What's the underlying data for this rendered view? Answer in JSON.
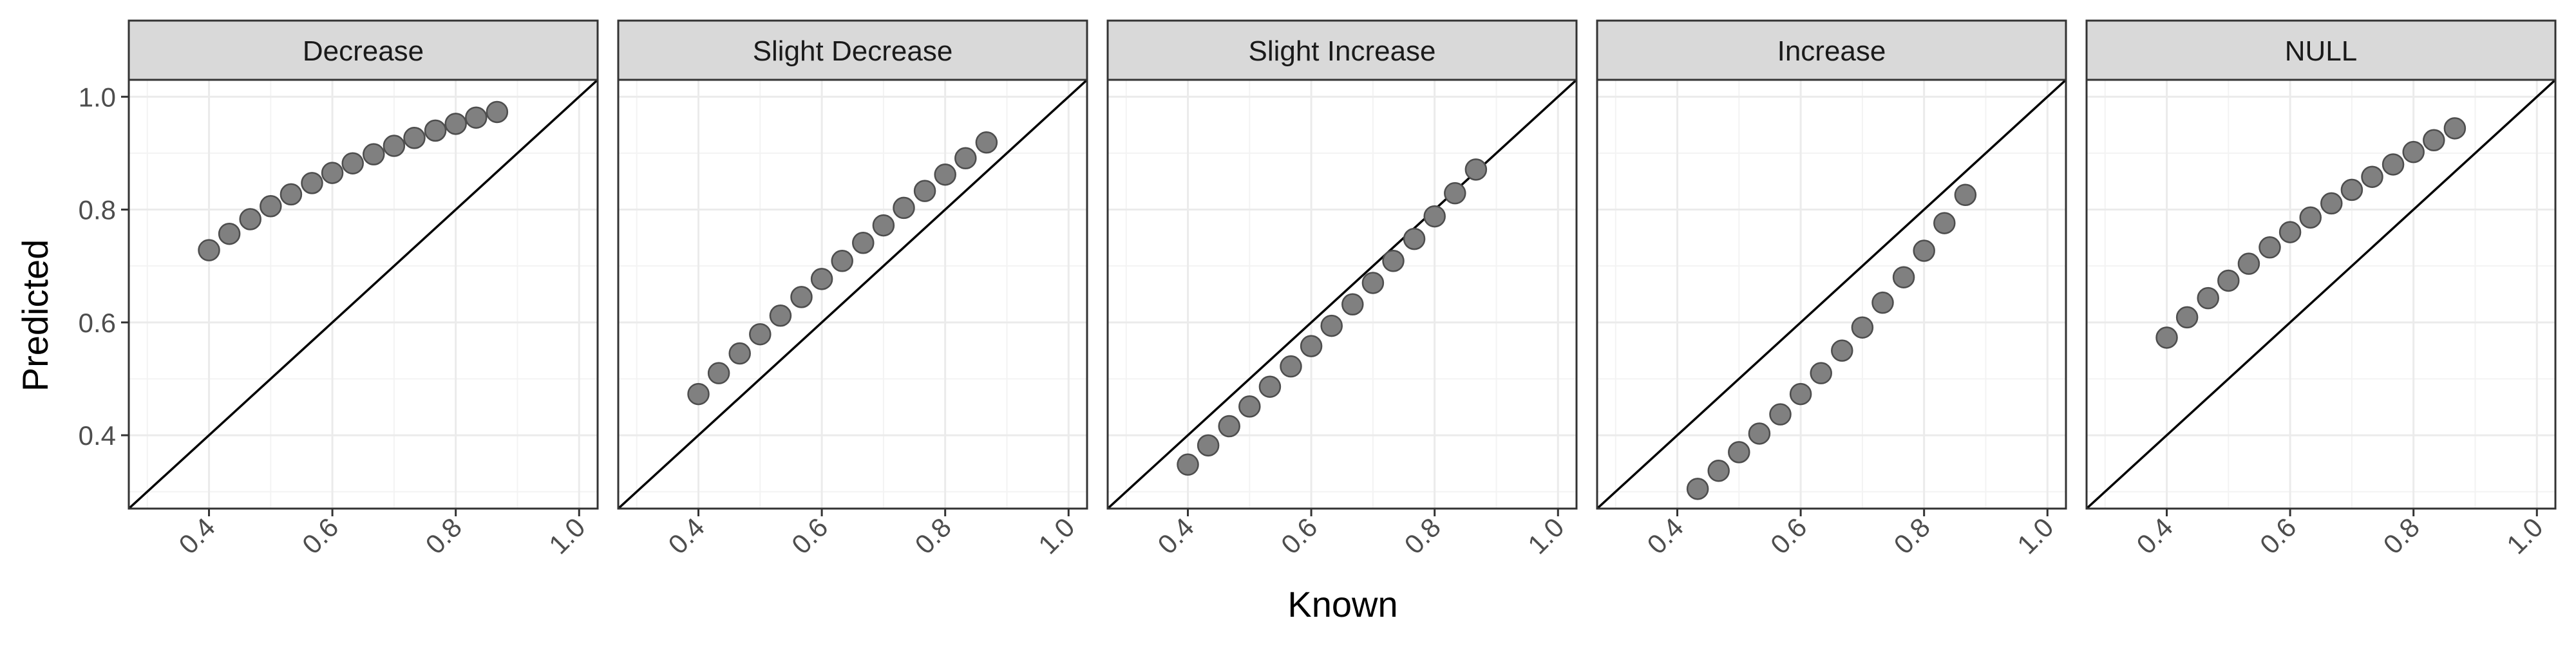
{
  "chart_data": {
    "type": "scatter",
    "layout": "facet-row",
    "xlabel": "Known",
    "ylabel": "Predicted",
    "xlim": [
      0.27,
      1.03
    ],
    "ylim": [
      0.27,
      1.03
    ],
    "x_ticks": [
      0.4,
      0.6,
      0.8,
      1.0
    ],
    "x_tick_labels": [
      "0.4",
      "0.6",
      "0.8",
      "1.0"
    ],
    "y_ticks": [
      0.4,
      0.6,
      0.8,
      1.0
    ],
    "y_tick_labels": [
      "0.4",
      "0.6",
      "0.8",
      "1.0"
    ],
    "reference_line": "y = x",
    "grid": true,
    "point_color": "#808080",
    "point_outline": "#4d4d4d",
    "strip_fill": "#d9d9d9",
    "panels": [
      {
        "name": "Decrease",
        "x": [
          0.4,
          0.433,
          0.467,
          0.5,
          0.533,
          0.567,
          0.6,
          0.633,
          0.667,
          0.7,
          0.733,
          0.767,
          0.8,
          0.833,
          0.867
        ],
        "y": [
          0.728,
          0.757,
          0.783,
          0.806,
          0.827,
          0.847,
          0.865,
          0.882,
          0.898,
          0.913,
          0.927,
          0.94,
          0.952,
          0.963,
          0.973
        ]
      },
      {
        "name": "Slight Decrease",
        "x": [
          0.4,
          0.433,
          0.467,
          0.5,
          0.533,
          0.567,
          0.6,
          0.633,
          0.667,
          0.7,
          0.733,
          0.767,
          0.8,
          0.833,
          0.867
        ],
        "y": [
          0.473,
          0.51,
          0.545,
          0.579,
          0.612,
          0.645,
          0.677,
          0.709,
          0.741,
          0.772,
          0.803,
          0.833,
          0.862,
          0.891,
          0.919
        ]
      },
      {
        "name": "Slight Increase",
        "x": [
          0.4,
          0.433,
          0.467,
          0.5,
          0.533,
          0.567,
          0.6,
          0.633,
          0.667,
          0.7,
          0.733,
          0.767,
          0.8,
          0.833,
          0.867
        ],
        "y": [
          0.348,
          0.382,
          0.416,
          0.451,
          0.486,
          0.522,
          0.558,
          0.594,
          0.632,
          0.67,
          0.709,
          0.748,
          0.788,
          0.829,
          0.871
        ]
      },
      {
        "name": "Increase",
        "x": [
          0.433,
          0.467,
          0.5,
          0.533,
          0.567,
          0.6,
          0.633,
          0.667,
          0.7,
          0.733,
          0.767,
          0.8,
          0.833,
          0.867
        ],
        "y": [
          0.305,
          0.337,
          0.37,
          0.403,
          0.437,
          0.473,
          0.51,
          0.55,
          0.591,
          0.635,
          0.68,
          0.727,
          0.776,
          0.826
        ]
      },
      {
        "name": "NULL",
        "x": [
          0.4,
          0.433,
          0.467,
          0.5,
          0.533,
          0.567,
          0.6,
          0.633,
          0.667,
          0.7,
          0.733,
          0.767,
          0.8,
          0.833,
          0.867
        ],
        "y": [
          0.573,
          0.609,
          0.643,
          0.674,
          0.704,
          0.733,
          0.76,
          0.786,
          0.811,
          0.835,
          0.858,
          0.88,
          0.902,
          0.923,
          0.944
        ]
      }
    ]
  }
}
